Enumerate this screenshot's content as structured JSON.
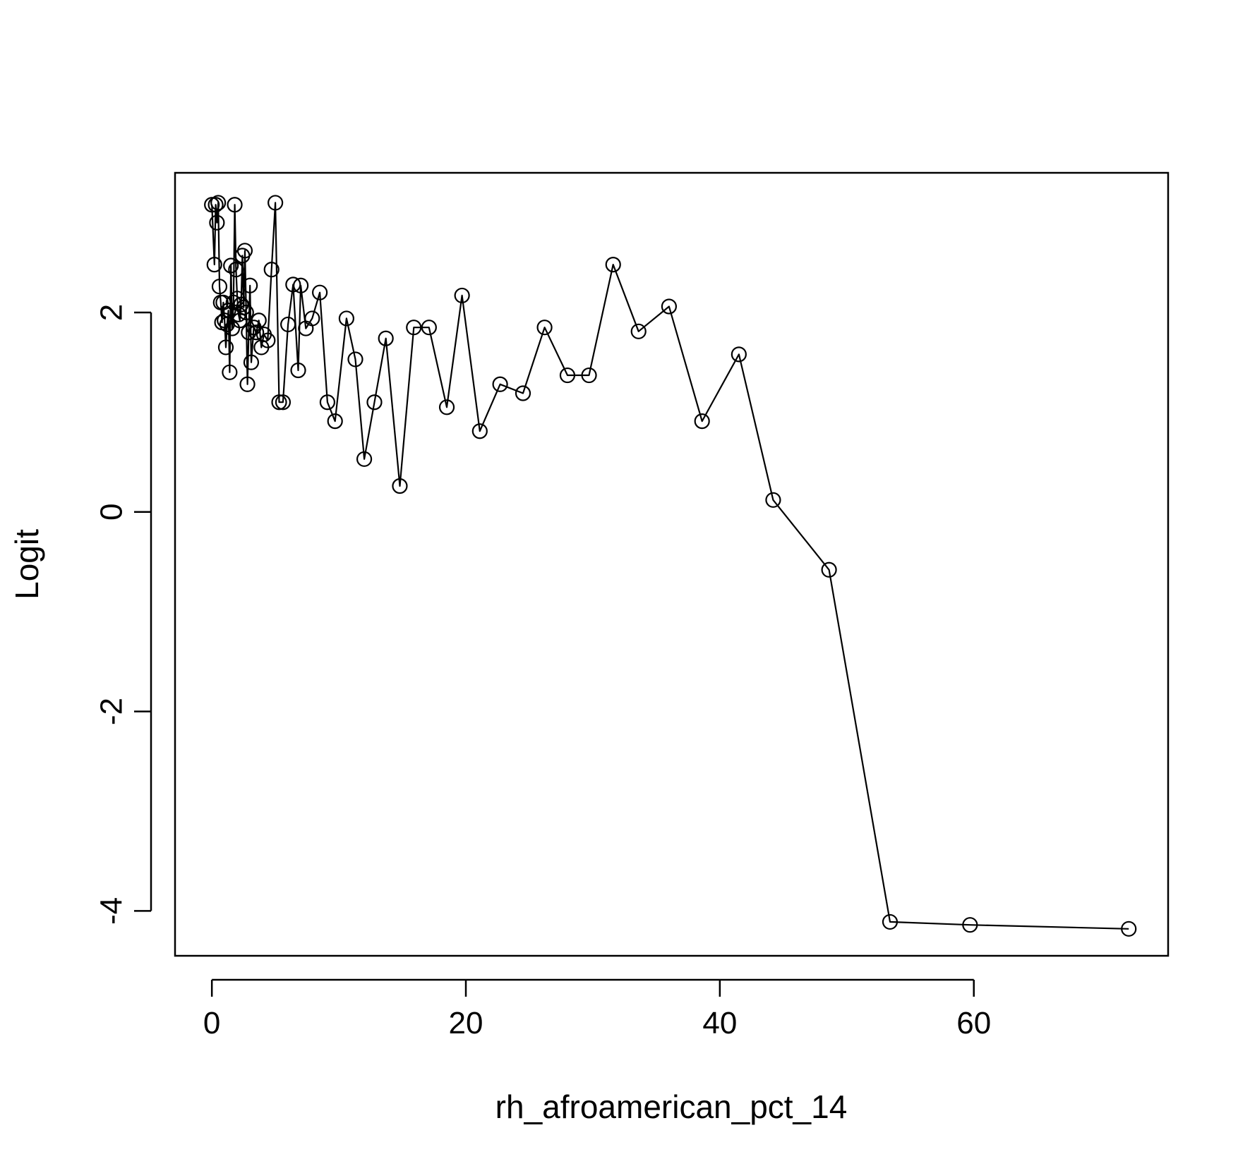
{
  "chart_data": {
    "type": "line",
    "title": "",
    "xlabel": "rh_afroamerican_pct_14",
    "ylabel": "Logit",
    "xlim": [
      -2.9,
      75.3
    ],
    "ylim": [
      -4.45,
      3.4
    ],
    "x_ticks": [
      0,
      20,
      40,
      60
    ],
    "y_ticks": [
      -4,
      -2,
      0,
      2
    ],
    "x_tick_labels": [
      "0",
      "20",
      "40",
      "60"
    ],
    "y_tick_labels": [
      "-4",
      "-2",
      "0",
      "2"
    ],
    "grid": false,
    "legend": "none",
    "marker": "open-circle",
    "line_color": "#000000",
    "series": [
      {
        "x": [
          0.0,
          0.2,
          0.3,
          0.4,
          0.5,
          0.6,
          0.7,
          0.8,
          0.9,
          1.0,
          1.1,
          1.2,
          1.3,
          1.4,
          1.5,
          1.6,
          1.7,
          1.8,
          1.9,
          2.0,
          2.1,
          2.2,
          2.3,
          2.4,
          2.5,
          2.6,
          2.7,
          2.8,
          2.9,
          3.0,
          3.1,
          3.3,
          3.5,
          3.7,
          3.9,
          4.1,
          4.4,
          4.7,
          5.0,
          5.3,
          5.6,
          6.0,
          6.4,
          6.8,
          7.0,
          7.4,
          7.9,
          8.5,
          9.1,
          9.7,
          10.6,
          11.3,
          12.0,
          12.8,
          13.7,
          14.8,
          15.9,
          17.1,
          18.5,
          19.7,
          21.1,
          22.7,
          24.5,
          26.2,
          28.0,
          29.7,
          31.6,
          33.6,
          36.0,
          38.6,
          41.5,
          44.2,
          48.6,
          53.4,
          59.7,
          72.2
        ],
        "y": [
          3.08,
          2.48,
          3.08,
          2.9,
          3.1,
          2.26,
          2.1,
          1.9,
          2.1,
          1.92,
          1.65,
          1.88,
          2.02,
          1.4,
          2.47,
          1.84,
          2.1,
          3.08,
          2.43,
          2.14,
          1.98,
          1.92,
          2.08,
          2.57,
          2.05,
          2.62,
          2.0,
          1.28,
          1.8,
          2.27,
          1.5,
          1.85,
          1.8,
          1.92,
          1.65,
          1.78,
          1.72,
          2.43,
          3.1,
          1.1,
          1.1,
          1.88,
          2.28,
          1.42,
          2.27,
          1.84,
          1.94,
          2.2,
          1.1,
          0.91,
          1.94,
          1.53,
          0.53,
          1.1,
          1.74,
          0.26,
          1.85,
          1.85,
          1.05,
          2.17,
          0.81,
          1.28,
          1.19,
          1.85,
          1.37,
          1.37,
          2.48,
          1.81,
          2.06,
          0.91,
          1.58,
          0.12,
          -0.58,
          -4.11,
          -4.14,
          -4.18
        ]
      }
    ]
  }
}
